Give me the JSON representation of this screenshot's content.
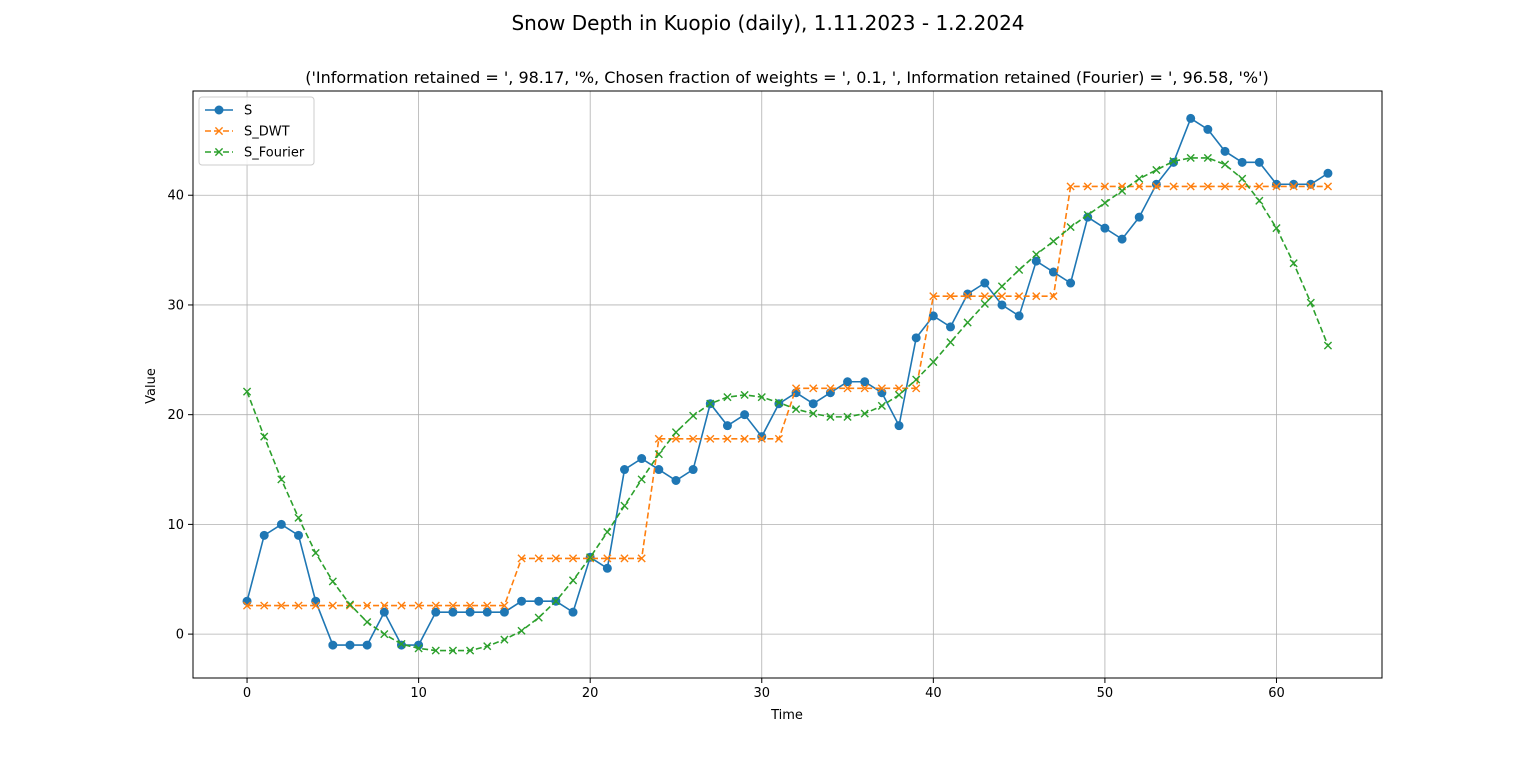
{
  "chart_data": {
    "type": "line",
    "title": "Snow Depth in Kuopio (daily), 1.11.2023 - 1.2.2024",
    "subtitle": "('Information retained = ', 98.17, '%, Chosen fraction of weights = ', 0.1, ', Information retained (Fourier) = ', 96.58, '%')",
    "xlabel": "Time",
    "ylabel": "Value",
    "xlim": [
      -3.15,
      66.15
    ],
    "ylim": [
      -4,
      49.5
    ],
    "xticks": [
      0,
      10,
      20,
      30,
      40,
      50,
      60
    ],
    "yticks": [
      0,
      10,
      20,
      30,
      40
    ],
    "grid": true,
    "legend_position": "top-left",
    "series": [
      {
        "name": "S",
        "color": "#1f77b4",
        "linestyle": "solid",
        "marker": "circle",
        "values": [
          3,
          9,
          10,
          9,
          3,
          -1,
          -1,
          -1,
          2,
          -1,
          -1,
          2,
          2,
          2,
          2,
          2,
          3,
          3,
          3,
          2,
          7,
          6,
          15,
          16,
          15,
          14,
          15,
          21,
          19,
          20,
          18,
          21,
          22,
          21,
          22,
          23,
          23,
          22,
          19,
          27,
          29,
          28,
          31,
          32,
          30,
          29,
          34,
          33,
          32,
          38,
          37,
          36,
          38,
          41,
          43,
          47,
          46,
          44,
          43,
          43,
          41,
          41,
          41,
          42
        ]
      },
      {
        "name": "S_DWT",
        "color": "#ff7f0e",
        "linestyle": "dashed",
        "marker": "x",
        "values": [
          2.6,
          2.6,
          2.6,
          2.6,
          2.6,
          2.6,
          2.6,
          2.6,
          2.6,
          2.6,
          2.6,
          2.6,
          2.6,
          2.6,
          2.6,
          2.6,
          6.9,
          6.9,
          6.9,
          6.9,
          6.9,
          6.9,
          6.9,
          6.9,
          17.8,
          17.8,
          17.8,
          17.8,
          17.8,
          17.8,
          17.8,
          17.8,
          22.4,
          22.4,
          22.4,
          22.4,
          22.4,
          22.4,
          22.4,
          22.4,
          30.8,
          30.8,
          30.8,
          30.8,
          30.8,
          30.8,
          30.8,
          30.8,
          40.8,
          40.8,
          40.8,
          40.8,
          40.8,
          40.8,
          40.8,
          40.8,
          40.8,
          40.8,
          40.8,
          40.8,
          40.8,
          40.8,
          40.8,
          40.8
        ]
      },
      {
        "name": "S_Fourier",
        "color": "#2ca02c",
        "linestyle": "dashed",
        "marker": "x",
        "values": [
          22.1,
          18.0,
          14.1,
          10.6,
          7.4,
          4.8,
          2.7,
          1.1,
          0.0,
          -0.9,
          -1.3,
          -1.5,
          -1.5,
          -1.5,
          -1.1,
          -0.5,
          0.3,
          1.5,
          3.0,
          4.9,
          7.0,
          9.3,
          11.7,
          14.1,
          16.4,
          18.4,
          19.9,
          21.0,
          21.6,
          21.8,
          21.6,
          21.1,
          20.5,
          20.1,
          19.8,
          19.8,
          20.1,
          20.8,
          21.8,
          23.2,
          24.8,
          26.6,
          28.4,
          30.1,
          31.7,
          33.2,
          34.6,
          35.8,
          37.1,
          38.2,
          39.3,
          40.4,
          41.5,
          42.3,
          43.1,
          43.4,
          43.4,
          42.8,
          41.5,
          39.5,
          37.0,
          33.8,
          30.2,
          26.3
        ]
      }
    ]
  }
}
